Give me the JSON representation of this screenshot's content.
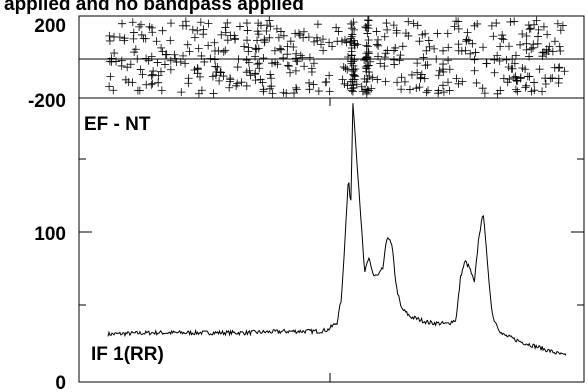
{
  "title": "applied and no bandpass applied",
  "chart_data": [
    {
      "type": "scatter",
      "panel": "phase",
      "ylim": [
        -200,
        200
      ],
      "ytick_labels": [
        "200",
        "-200"
      ],
      "reference_line_y": 0,
      "marker": "plus",
      "note": "phase scatter, roughly uniform over [-200,200] with denser streaks near x 0.53 and 0.56"
    },
    {
      "type": "line",
      "panel": "amplitude",
      "ylim": [
        0,
        200
      ],
      "ytick_labels": [
        "100",
        "0"
      ],
      "baseline_label": "EF - NT",
      "series_label": "IF 1(RR)",
      "x": [
        0.0,
        0.1,
        0.2,
        0.3,
        0.4,
        0.46,
        0.48,
        0.5,
        0.51,
        0.52,
        0.525,
        0.53,
        0.535,
        0.54,
        0.55,
        0.56,
        0.57,
        0.58,
        0.59,
        0.6,
        0.61,
        0.62,
        0.63,
        0.64,
        0.66,
        0.7,
        0.74,
        0.76,
        0.77,
        0.78,
        0.79,
        0.8,
        0.81,
        0.82,
        0.83,
        0.84,
        0.86,
        0.9,
        0.95,
        1.0
      ],
      "y": [
        30,
        31,
        31,
        31,
        32,
        32,
        33,
        38,
        55,
        110,
        140,
        115,
        190,
        165,
        120,
        72,
        82,
        70,
        70,
        75,
        98,
        90,
        62,
        48,
        42,
        38,
        37,
        40,
        70,
        80,
        75,
        65,
        98,
        113,
        72,
        42,
        30,
        25,
        20,
        15
      ]
    }
  ]
}
